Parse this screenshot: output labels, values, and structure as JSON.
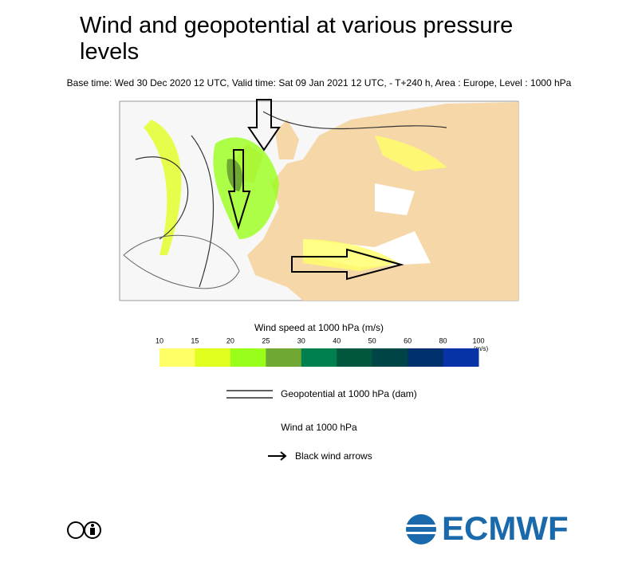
{
  "header": {
    "title": "Wind and geopotential at various pressure levels",
    "subtitle": "Base time: Wed 30 Dec 2020 12 UTC, Valid time: Sat 09 Jan 2021 12 UTC, - T+240 h, Area : Europe, Level : 1000 hPa"
  },
  "colorbar": {
    "title": "Wind speed at 1000 hPa (m/s)",
    "ticks": [
      10,
      15,
      20,
      25,
      30,
      40,
      50,
      60,
      80,
      100
    ],
    "unit": "(m/s)",
    "colors": [
      "#ffff66",
      "#e1ff1f",
      "#99ff1a",
      "#6fa832",
      "#00804f",
      "#00573e",
      "#004545",
      "#00306b",
      "#0733a6"
    ]
  },
  "legend": {
    "geopotential": "Geopotential at 1000 hPa (dam)",
    "wind_title": "Wind at 1000 hPa",
    "wind_arrows": "Black wind arrows"
  },
  "logo": {
    "text": "ECMWF"
  }
}
